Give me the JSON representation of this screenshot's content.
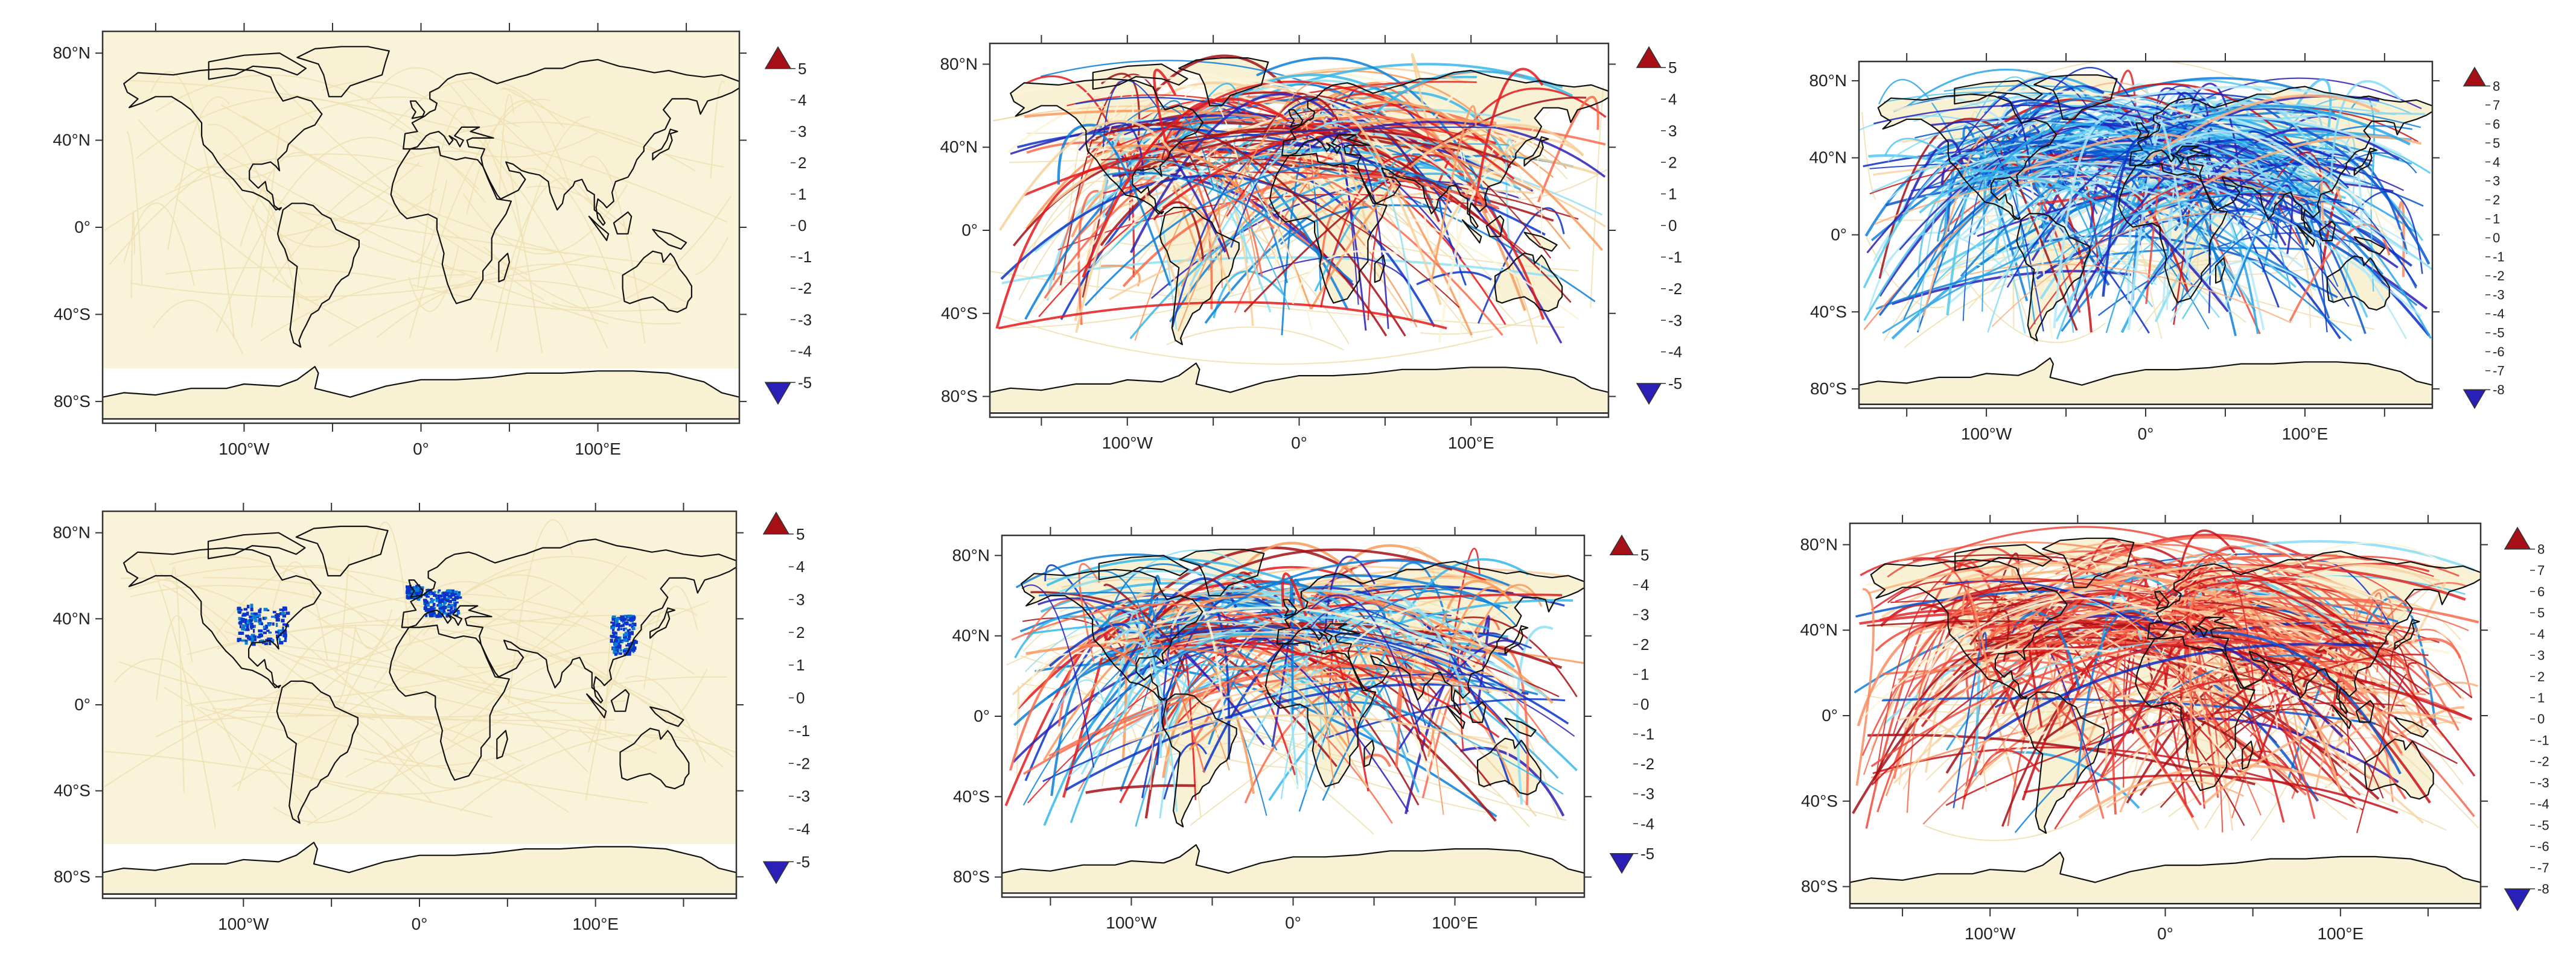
{
  "colors": {
    "land_fill": "#f8f1d4",
    "coast": "#111111",
    "frame": "#333333",
    "track_light": "#f0e1b4"
  },
  "colorbars": {
    "scale5": {
      "labels": [
        "5",
        "4",
        "3",
        "2",
        "1",
        "0",
        "-1",
        "-2",
        "-3",
        "-4",
        "-5"
      ],
      "colors": [
        "#a50f15",
        "#e41a1c",
        "#fb6a4a",
        "#f89a5a",
        "#f7d09a",
        "#fdf5d8",
        "#d2f2fb",
        "#8fe0f5",
        "#35b7ea",
        "#0a7fd8",
        "#0a35c8",
        "#2a1fb6"
      ]
    },
    "scale8": {
      "labels": [
        "8",
        "7",
        "6",
        "5",
        "4",
        "3",
        "2",
        "1",
        "0",
        "-1",
        "-2",
        "-3",
        "-4",
        "-5",
        "-6",
        "-7",
        "-8"
      ],
      "colors": [
        "#a50f15",
        "#c81219",
        "#e0282a",
        "#ef4a3c",
        "#f66a4f",
        "#f98c62",
        "#fbb07d",
        "#f9d4a4",
        "#fdf5d8",
        "#dcf4fb",
        "#b3e9f8",
        "#86dcf4",
        "#55c8ef",
        "#2aa7e6",
        "#0f7fdc",
        "#0a57cf",
        "#0a2fc4",
        "#2a1fb6"
      ]
    }
  },
  "panels": [
    {
      "id": "p1",
      "axes": {
        "lat_labels": [
          "80°N",
          "40°N",
          "0°",
          "40°S",
          "80°S"
        ],
        "lon_labels": [
          "100°W",
          "0°",
          "100°E"
        ]
      },
      "colorbar": "scale5",
      "pattern": {
        "style": "faint",
        "tracks": 0,
        "dominant": "neutral",
        "hot": []
      }
    },
    {
      "id": "p2",
      "axes": {
        "lat_labels": [
          "80°N",
          "40°N",
          "0°",
          "40°S",
          "80°S"
        ],
        "lon_labels": [
          "100°W",
          "0°",
          "100°E"
        ]
      },
      "colorbar": "scale5",
      "pattern": {
        "style": "tracks",
        "tracks": 260,
        "dominant": "mixed-warm",
        "hot": []
      }
    },
    {
      "id": "p3",
      "axes": {
        "lat_labels": [
          "80°N",
          "40°N",
          "0°",
          "40°S",
          "80°S"
        ],
        "lon_labels": [
          "100°W",
          "0°",
          "100°E"
        ]
      },
      "colorbar": "scale8",
      "pattern": {
        "style": "tracks",
        "tracks": 360,
        "dominant": "cool",
        "hot": []
      }
    },
    {
      "id": "p4",
      "axes": {
        "lat_labels": [
          "80°N",
          "40°N",
          "0°",
          "40°S",
          "80°S"
        ],
        "lon_labels": [
          "100°W",
          "0°",
          "100°E"
        ]
      },
      "colorbar": "scale5",
      "pattern": {
        "style": "faint",
        "tracks": 0,
        "dominant": "neutral",
        "hot": [
          [
            -90,
            38,
            14,
            9
          ],
          [
            12,
            48,
            10,
            6
          ],
          [
            115,
            33,
            7,
            9
          ],
          [
            -4,
            53,
            4,
            3
          ]
        ]
      }
    },
    {
      "id": "p5",
      "axes": {
        "lat_labels": [
          "80°N",
          "40°N",
          "0°",
          "40°S",
          "80°S"
        ],
        "lon_labels": [
          "100°W",
          "0°",
          "100°E"
        ]
      },
      "colorbar": "scale5",
      "pattern": {
        "style": "tracks",
        "tracks": 260,
        "dominant": "mixed",
        "hot": []
      }
    },
    {
      "id": "p6",
      "axes": {
        "lat_labels": [
          "80°N",
          "40°N",
          "0°",
          "40°S",
          "80°S"
        ],
        "lon_labels": [
          "100°W",
          "0°",
          "100°E"
        ]
      },
      "colorbar": "scale8",
      "pattern": {
        "style": "tracks",
        "tracks": 380,
        "dominant": "warm",
        "hot": []
      }
    }
  ]
}
